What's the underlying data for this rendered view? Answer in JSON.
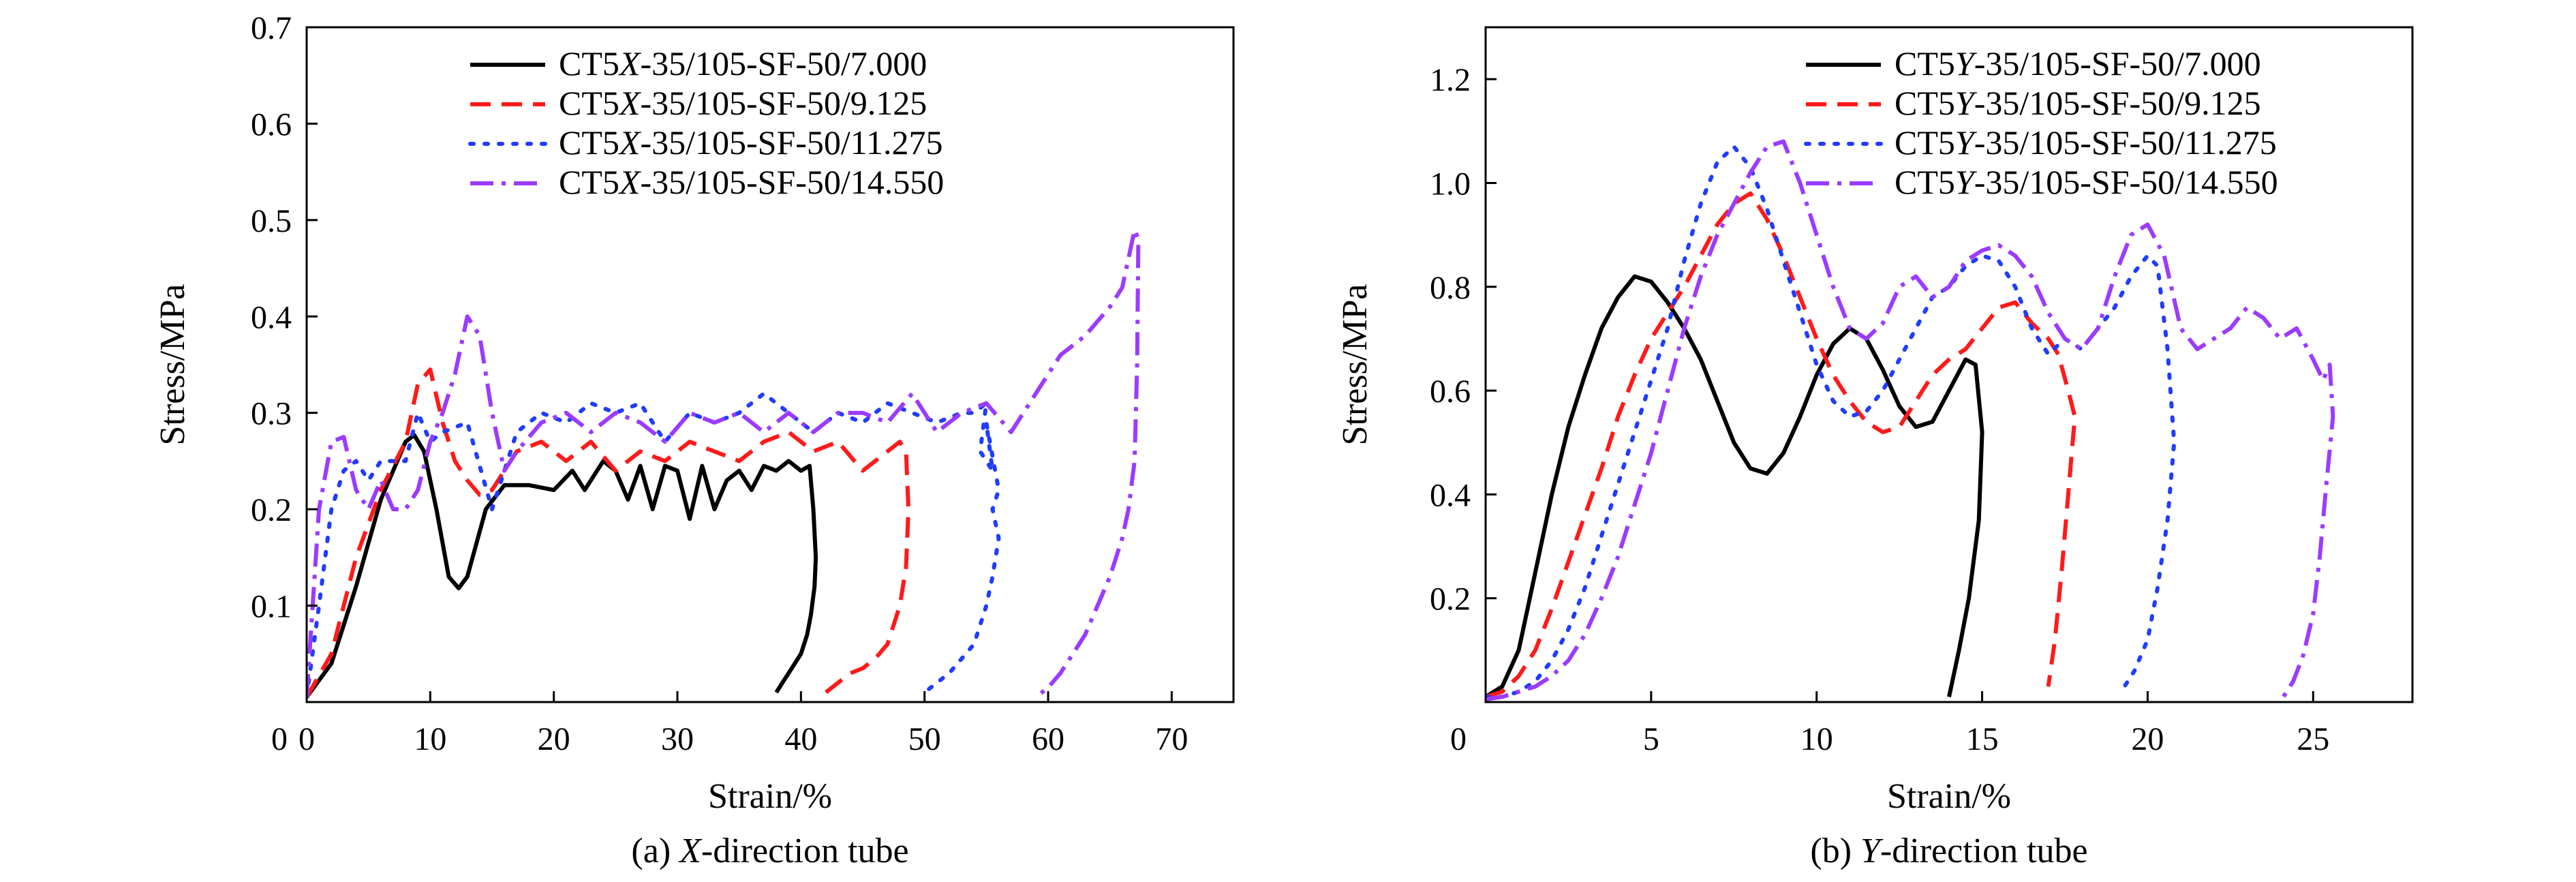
{
  "colors": {
    "black": "#000000",
    "red": "#ff1a1a",
    "blue": "#1f3cff",
    "purple": "#9b3bff"
  },
  "chart_data": [
    {
      "type": "line",
      "caption_prefix": "(a) ",
      "caption_italic": "X",
      "caption_suffix": "-direction tube",
      "xlabel": "Strain/%",
      "ylabel": "Stress/MPa",
      "xlim": [
        0,
        75
      ],
      "ylim": [
        0,
        0.7
      ],
      "xticks": [
        "0",
        "10",
        "20",
        "30",
        "40",
        "50",
        "60",
        "70"
      ],
      "xtick_values": [
        0,
        10,
        20,
        30,
        40,
        50,
        60,
        70
      ],
      "yticks": [
        "0.1",
        "0.2",
        "0.3",
        "0.4",
        "0.5",
        "0.6",
        "0.7"
      ],
      "ytick_values": [
        0.1,
        0.2,
        0.3,
        0.4,
        0.5,
        0.6,
        0.7
      ],
      "origin_label": "0",
      "legend_position": "top-right",
      "grid": false,
      "series": [
        {
          "name": "CT5X-35/105-SF-50/7.000",
          "name_prefix": "CT5",
          "name_italic": "X",
          "name_suffix": "-35/105-SF-50/7.000",
          "color": "#000000",
          "dash": "solid",
          "x": [
            0,
            2,
            4,
            6,
            8,
            8.7,
            9.5,
            10.5,
            11.5,
            12.3,
            13,
            14.5,
            16,
            18,
            20,
            21.5,
            22.5,
            24,
            25,
            26,
            27,
            28,
            29,
            30,
            31,
            32,
            33,
            34,
            35,
            36,
            37,
            38,
            39,
            40,
            40.7,
            41,
            41.2,
            41.1,
            40.8,
            40.5,
            40,
            39.5,
            39,
            38.5,
            38
          ],
          "y": [
            0.005,
            0.04,
            0.12,
            0.21,
            0.27,
            0.277,
            0.26,
            0.2,
            0.13,
            0.118,
            0.13,
            0.2,
            0.225,
            0.225,
            0.22,
            0.24,
            0.22,
            0.25,
            0.24,
            0.21,
            0.245,
            0.2,
            0.245,
            0.24,
            0.19,
            0.245,
            0.2,
            0.23,
            0.24,
            0.22,
            0.245,
            0.24,
            0.25,
            0.24,
            0.245,
            0.2,
            0.15,
            0.12,
            0.09,
            0.07,
            0.05,
            0.04,
            0.03,
            0.02,
            0.01
          ]
        },
        {
          "name": "CT5X-35/105-SF-50/9.125",
          "name_prefix": "CT5",
          "name_italic": "X",
          "name_suffix": "-35/105-SF-50/9.125",
          "color": "#ff1a1a",
          "dash": "dashed",
          "x": [
            0,
            2,
            4,
            6,
            8,
            9,
            10,
            11,
            12,
            13,
            14,
            15,
            17,
            19,
            21,
            23,
            25,
            27,
            29,
            31,
            33,
            35,
            37,
            39,
            41,
            43,
            45,
            47,
            48,
            48.5,
            48.7,
            48.5,
            48,
            47.5,
            47,
            46,
            45,
            44,
            43,
            42
          ],
          "y": [
            0.005,
            0.05,
            0.15,
            0.22,
            0.27,
            0.33,
            0.345,
            0.29,
            0.25,
            0.23,
            0.215,
            0.22,
            0.26,
            0.27,
            0.25,
            0.27,
            0.24,
            0.26,
            0.25,
            0.27,
            0.26,
            0.25,
            0.27,
            0.28,
            0.26,
            0.27,
            0.24,
            0.26,
            0.27,
            0.26,
            0.2,
            0.14,
            0.1,
            0.08,
            0.06,
            0.045,
            0.035,
            0.03,
            0.02,
            0.01
          ]
        },
        {
          "name": "CT5X-35/105-SF-50/11.275",
          "name_prefix": "CT5",
          "name_italic": "X",
          "name_suffix": "-35/105-SF-50/11.275",
          "color": "#1f3cff",
          "dash": "dotted",
          "x": [
            0,
            1,
            2,
            3,
            4,
            5,
            6,
            8,
            9,
            10,
            11,
            13,
            15,
            17,
            19,
            21,
            23,
            25,
            27,
            29,
            31,
            33,
            35,
            37,
            39,
            41,
            43,
            45,
            47,
            49,
            51,
            53,
            54,
            55,
            54.5,
            55.5,
            55,
            56,
            55.5,
            56,
            55.5,
            55,
            54.5,
            54,
            53,
            52,
            51,
            50
          ],
          "y": [
            0.005,
            0.1,
            0.2,
            0.24,
            0.25,
            0.23,
            0.25,
            0.25,
            0.3,
            0.27,
            0.28,
            0.29,
            0.2,
            0.28,
            0.3,
            0.29,
            0.31,
            0.3,
            0.31,
            0.27,
            0.3,
            0.29,
            0.3,
            0.32,
            0.3,
            0.28,
            0.3,
            0.29,
            0.31,
            0.3,
            0.29,
            0.3,
            0.3,
            0.31,
            0.26,
            0.24,
            0.29,
            0.22,
            0.2,
            0.17,
            0.13,
            0.1,
            0.08,
            0.06,
            0.045,
            0.03,
            0.02,
            0.01
          ]
        },
        {
          "name": "CT5X-35/105-SF-50/14.550",
          "name_prefix": "CT5",
          "name_italic": "X",
          "name_suffix": "-35/105-SF-50/14.550",
          "color": "#9b3bff",
          "dash": "dashdot",
          "x": [
            0,
            1,
            2,
            3,
            4,
            5,
            6,
            7,
            8,
            9,
            10,
            11,
            12,
            13,
            14,
            15,
            16,
            17,
            19,
            21,
            23,
            25,
            27,
            29,
            31,
            33,
            35,
            37,
            39,
            41,
            43,
            45,
            47,
            49,
            51,
            53,
            55,
            57,
            59,
            61,
            63,
            65,
            66,
            67,
            67.3,
            67.2,
            67,
            66.5,
            66,
            65,
            64,
            63,
            62,
            61,
            60,
            59
          ],
          "y": [
            0.005,
            0.2,
            0.27,
            0.275,
            0.22,
            0.2,
            0.23,
            0.2,
            0.2,
            0.22,
            0.27,
            0.3,
            0.34,
            0.4,
            0.38,
            0.3,
            0.24,
            0.26,
            0.29,
            0.3,
            0.28,
            0.3,
            0.29,
            0.27,
            0.3,
            0.29,
            0.3,
            0.28,
            0.3,
            0.28,
            0.3,
            0.3,
            0.29,
            0.32,
            0.28,
            0.3,
            0.31,
            0.28,
            0.32,
            0.36,
            0.38,
            0.41,
            0.43,
            0.49,
            0.48,
            0.35,
            0.25,
            0.2,
            0.17,
            0.13,
            0.1,
            0.07,
            0.05,
            0.03,
            0.015,
            0.005
          ]
        }
      ]
    },
    {
      "type": "line",
      "caption_prefix": "(b) ",
      "caption_italic": "Y",
      "caption_suffix": "-direction tube",
      "xlabel": "Strain/%",
      "ylabel": "Stress/MPa",
      "xlim": [
        0,
        28
      ],
      "ylim": [
        0,
        1.3
      ],
      "xticks": [
        "5",
        "10",
        "15",
        "20",
        "25"
      ],
      "xtick_values": [
        5,
        10,
        15,
        20,
        25
      ],
      "yticks": [
        "0.2",
        "0.4",
        "0.6",
        "0.8",
        "1.0",
        "1.2"
      ],
      "ytick_values": [
        0.2,
        0.4,
        0.6,
        0.8,
        1.0,
        1.2
      ],
      "origin_label": "0",
      "legend_position": "top-right",
      "grid": false,
      "series": [
        {
          "name": "CT5Y-35/105-SF-50/7.000",
          "name_prefix": "CT5",
          "name_italic": "Y",
          "name_suffix": "-35/105-SF-50/7.000",
          "color": "#000000",
          "dash": "solid",
          "x": [
            0,
            0.5,
            1,
            1.5,
            2,
            2.5,
            3,
            3.5,
            4,
            4.5,
            5,
            5.5,
            6,
            6.5,
            7,
            7.5,
            8,
            8.5,
            9,
            9.5,
            10,
            10.5,
            11,
            11.5,
            12,
            12.5,
            13,
            13.5,
            14,
            14.5,
            14.8,
            15,
            14.9,
            14.6,
            14.3,
            14
          ],
          "y": [
            0.01,
            0.03,
            0.1,
            0.25,
            0.4,
            0.53,
            0.63,
            0.72,
            0.78,
            0.82,
            0.81,
            0.77,
            0.72,
            0.66,
            0.58,
            0.5,
            0.45,
            0.44,
            0.48,
            0.55,
            0.63,
            0.69,
            0.72,
            0.7,
            0.64,
            0.57,
            0.53,
            0.54,
            0.6,
            0.66,
            0.65,
            0.52,
            0.35,
            0.2,
            0.1,
            0.01
          ]
        },
        {
          "name": "CT5Y-35/105-SF-50/9.125",
          "name_prefix": "CT5",
          "name_italic": "Y",
          "name_suffix": "-35/105-SF-50/9.125",
          "color": "#ff1a1a",
          "dash": "dashed",
          "x": [
            0,
            0.5,
            1,
            1.5,
            2,
            2.5,
            3,
            3.5,
            4,
            4.5,
            5,
            5.5,
            6,
            6.5,
            7,
            7.5,
            8,
            8.5,
            9,
            9.5,
            10,
            10.5,
            11,
            11.5,
            12,
            12.5,
            13,
            13.5,
            14,
            14.5,
            15,
            15.5,
            16,
            16.5,
            17,
            17.3,
            17.6,
            17.8,
            17.6,
            17.4,
            17.2,
            17
          ],
          "y": [
            0.01,
            0.02,
            0.05,
            0.1,
            0.18,
            0.27,
            0.36,
            0.45,
            0.55,
            0.63,
            0.7,
            0.75,
            0.8,
            0.86,
            0.92,
            0.96,
            0.98,
            0.93,
            0.86,
            0.78,
            0.7,
            0.63,
            0.58,
            0.54,
            0.52,
            0.53,
            0.58,
            0.63,
            0.66,
            0.68,
            0.72,
            0.76,
            0.77,
            0.73,
            0.7,
            0.67,
            0.6,
            0.55,
            0.4,
            0.25,
            0.12,
            0.03
          ]
        },
        {
          "name": "CT5Y-35/105-SF-50/11.275",
          "name_prefix": "CT5",
          "name_italic": "Y",
          "name_suffix": "-35/105-SF-50/11.275",
          "color": "#1f3cff",
          "dash": "dotted",
          "x": [
            0,
            0.5,
            1,
            1.5,
            2,
            2.5,
            3,
            3.5,
            4,
            4.5,
            5,
            5.5,
            6,
            6.5,
            7,
            7.5,
            8,
            8.5,
            9,
            9.5,
            10,
            10.5,
            11,
            11.5,
            12,
            12.5,
            13,
            13.5,
            14,
            14.5,
            15,
            15.5,
            16,
            16.5,
            17,
            17.5,
            18,
            18.5,
            19,
            19.5,
            20,
            20.3,
            20.6,
            20.8,
            20.6,
            20.3,
            20,
            19.6,
            19.2
          ],
          "y": [
            0.01,
            0.01,
            0.02,
            0.04,
            0.08,
            0.14,
            0.22,
            0.32,
            0.42,
            0.52,
            0.62,
            0.72,
            0.85,
            0.96,
            1.04,
            1.07,
            1.03,
            0.95,
            0.85,
            0.75,
            0.65,
            0.58,
            0.55,
            0.56,
            0.6,
            0.66,
            0.72,
            0.78,
            0.8,
            0.84,
            0.86,
            0.85,
            0.8,
            0.72,
            0.67,
            0.7,
            0.68,
            0.72,
            0.76,
            0.82,
            0.86,
            0.84,
            0.68,
            0.5,
            0.35,
            0.22,
            0.12,
            0.06,
            0.02
          ]
        },
        {
          "name": "CT5Y-35/105-SF-50/14.550",
          "name_prefix": "CT5",
          "name_italic": "Y",
          "name_suffix": "-35/105-SF-50/14.550",
          "color": "#9b3bff",
          "dash": "dashdot",
          "x": [
            0,
            0.5,
            1,
            1.5,
            2,
            2.5,
            3,
            3.5,
            4,
            4.5,
            5,
            5.5,
            6,
            6.5,
            7,
            7.5,
            8,
            8.5,
            9,
            9.5,
            10,
            10.5,
            11,
            11.5,
            12,
            12.5,
            13,
            13.5,
            14,
            14.5,
            15,
            15.5,
            16,
            16.5,
            17,
            17.5,
            18,
            18.5,
            19,
            19.5,
            20,
            20.5,
            21,
            21.5,
            22,
            22.5,
            23,
            23.5,
            24,
            24.5,
            25,
            25.3,
            25.5,
            25.6,
            25.4,
            25.2,
            25,
            24.7,
            24.4,
            24.1
          ],
          "y": [
            0.005,
            0.01,
            0.02,
            0.03,
            0.05,
            0.08,
            0.13,
            0.2,
            0.28,
            0.38,
            0.48,
            0.6,
            0.72,
            0.82,
            0.9,
            0.96,
            1.02,
            1.07,
            1.08,
            1.0,
            0.9,
            0.8,
            0.72,
            0.7,
            0.73,
            0.8,
            0.82,
            0.78,
            0.8,
            0.85,
            0.87,
            0.88,
            0.86,
            0.82,
            0.75,
            0.7,
            0.68,
            0.72,
            0.82,
            0.9,
            0.92,
            0.86,
            0.72,
            0.68,
            0.7,
            0.72,
            0.76,
            0.74,
            0.7,
            0.72,
            0.66,
            0.62,
            0.65,
            0.55,
            0.42,
            0.28,
            0.17,
            0.09,
            0.04,
            0.01
          ]
        }
      ]
    }
  ]
}
